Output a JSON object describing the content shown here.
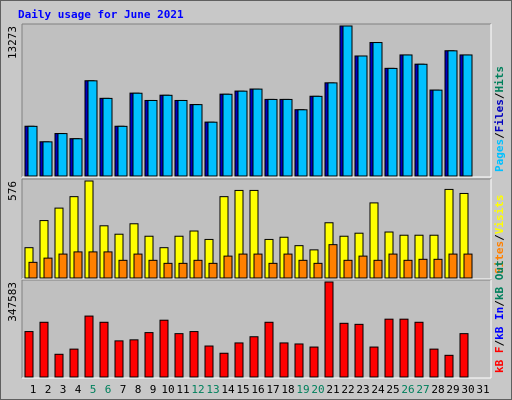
{
  "title": "Daily usage for June 2021",
  "separator": "/",
  "categories": [
    "1",
    "2",
    "3",
    "4",
    "5",
    "6",
    "7",
    "8",
    "9",
    "10",
    "11",
    "12",
    "13",
    "14",
    "15",
    "16",
    "17",
    "18",
    "19",
    "20",
    "21",
    "22",
    "23",
    "24",
    "25",
    "26",
    "27",
    "28",
    "29",
    "30",
    "31"
  ],
  "category_colors": [
    "#000000",
    "#000000",
    "#000000",
    "#000000",
    "#00805C",
    "#00805C",
    "#000000",
    "#000000",
    "#000000",
    "#000000",
    "#000000",
    "#00805C",
    "#00805C",
    "#000000",
    "#000000",
    "#000000",
    "#000000",
    "#000000",
    "#00805C",
    "#00805C",
    "#000000",
    "#000000",
    "#000000",
    "#000000",
    "#000000",
    "#00805C",
    "#00805C",
    "#000000",
    "#000000",
    "#000000",
    "#000000"
  ],
  "chart_data": [
    {
      "type": "bar",
      "ylim": [
        0,
        13273
      ],
      "yticks": [
        13273
      ],
      "series": [
        {
          "name": "Pages",
          "color": "#00C0FF",
          "values": [
            4394,
            3021,
            3753,
            3295,
            8422,
            6866,
            4394,
            7323,
            6682,
            7140,
            6682,
            6316,
            4760,
            7232,
            7506,
            7689,
            6774,
            6774,
            5859,
            7048,
            8239,
            13273,
            10619,
            11809,
            9520,
            10710,
            9886,
            7598,
            11076,
            10710
          ]
        },
        {
          "name": "Files",
          "color": "#0000C0",
          "values": [
            4394,
            3021,
            3753,
            3295,
            8422,
            6866,
            4394,
            7323,
            6682,
            7140,
            6682,
            6316,
            4760,
            7232,
            7506,
            7689,
            6774,
            6774,
            5859,
            7048,
            8239,
            13273,
            10619,
            11809,
            9520,
            10710,
            9886,
            7598,
            11076,
            10710
          ]
        },
        {
          "name": "Hits",
          "color": "#00805C",
          "values": [
            4394,
            3021,
            3753,
            3295,
            8422,
            6866,
            4394,
            7323,
            6682,
            7140,
            6682,
            6316,
            4760,
            7232,
            7506,
            7689,
            6774,
            6774,
            5859,
            7048,
            8239,
            13273,
            10619,
            11809,
            9520,
            10710,
            9886,
            7598,
            11076,
            10710
          ]
        }
      ]
    },
    {
      "type": "bar",
      "ylim": [
        0,
        576
      ],
      "yticks": [
        576
      ],
      "series": [
        {
          "name": "Sites",
          "color": "#FF8000",
          "values": [
            93,
            118,
            142,
            155,
            155,
            155,
            105,
            142,
            105,
            87,
            87,
            105,
            87,
            130,
            142,
            142,
            87,
            142,
            105,
            87,
            198,
            105,
            130,
            105,
            142,
            105,
            111,
            111,
            142,
            142
          ]
        },
        {
          "name": "Visits",
          "color": "#FFFF00",
          "values": [
            180,
            341,
            415,
            483,
            576,
            310,
            260,
            322,
            248,
            180,
            248,
            279,
            229,
            483,
            520,
            520,
            229,
            242,
            192,
            167,
            328,
            248,
            266,
            446,
            273,
            254,
            254,
            254,
            526,
            502
          ]
        }
      ]
    },
    {
      "type": "bar",
      "ylim": [
        0,
        347583
      ],
      "yticks": [
        347583
      ],
      "series": [
        {
          "name": "kB F",
          "color": "#FF0000",
          "values": [
            166237,
            200234,
            83116,
            102006,
            222902,
            200234,
            132230,
            136008,
            162454,
            207790,
            158676,
            166237,
            113340,
            86894,
            124674,
            147342,
            200234,
            124674,
            120896,
            109562,
            347583,
            196456,
            192678,
            109562,
            211568,
            211568,
            200234,
            102006,
            79338,
            158676
          ]
        },
        {
          "name": "kB In",
          "color": "#0000FF",
          "values": [
            0,
            0,
            0,
            0,
            0,
            0,
            0,
            0,
            0,
            0,
            0,
            0,
            0,
            0,
            0,
            0,
            0,
            0,
            0,
            0,
            0,
            0,
            0,
            0,
            0,
            0,
            0,
            0,
            0,
            0
          ]
        },
        {
          "name": "kB Out",
          "color": "#00805C",
          "values": [
            0,
            0,
            0,
            0,
            0,
            0,
            0,
            0,
            0,
            0,
            0,
            0,
            0,
            0,
            0,
            0,
            0,
            0,
            0,
            0,
            0,
            0,
            0,
            0,
            0,
            0,
            0,
            0,
            0,
            0
          ]
        }
      ]
    }
  ]
}
